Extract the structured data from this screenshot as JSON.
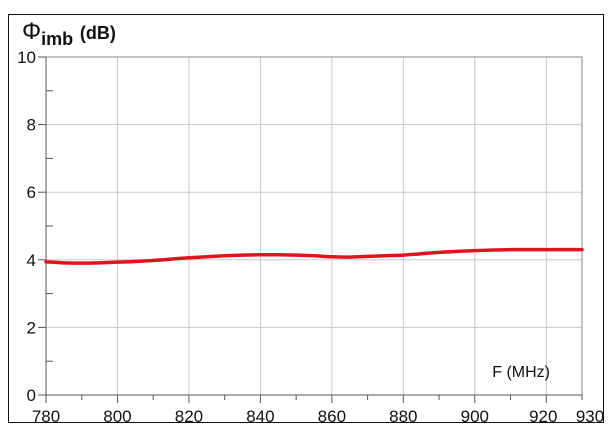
{
  "chart_data": {
    "type": "line",
    "ylabel": {
      "symbol": "Φ",
      "subscript": "imb",
      "unit": "(dB)"
    },
    "xlabel": "F (MHz)",
    "xlim": [
      780,
      930
    ],
    "ylim": [
      0,
      10
    ],
    "xticks": [
      780,
      800,
      820,
      840,
      860,
      880,
      900,
      920,
      930
    ],
    "yticks": [
      0,
      2,
      4,
      6,
      8,
      10
    ],
    "grid": true,
    "series_color": "#e0141e",
    "series": [
      {
        "x": [
          780,
          785,
          790,
          795,
          800,
          805,
          810,
          815,
          820,
          825,
          830,
          835,
          840,
          845,
          850,
          855,
          860,
          865,
          870,
          875,
          880,
          885,
          890,
          895,
          900,
          905,
          910,
          915,
          920,
          925,
          930
        ],
        "y": [
          3.94,
          3.91,
          3.9,
          3.91,
          3.93,
          3.95,
          3.98,
          4.02,
          4.06,
          4.09,
          4.12,
          4.14,
          4.15,
          4.15,
          4.14,
          4.12,
          4.09,
          4.08,
          4.1,
          4.12,
          4.14,
          4.18,
          4.22,
          4.25,
          4.27,
          4.29,
          4.3,
          4.3,
          4.3,
          4.3,
          4.3
        ]
      }
    ]
  }
}
